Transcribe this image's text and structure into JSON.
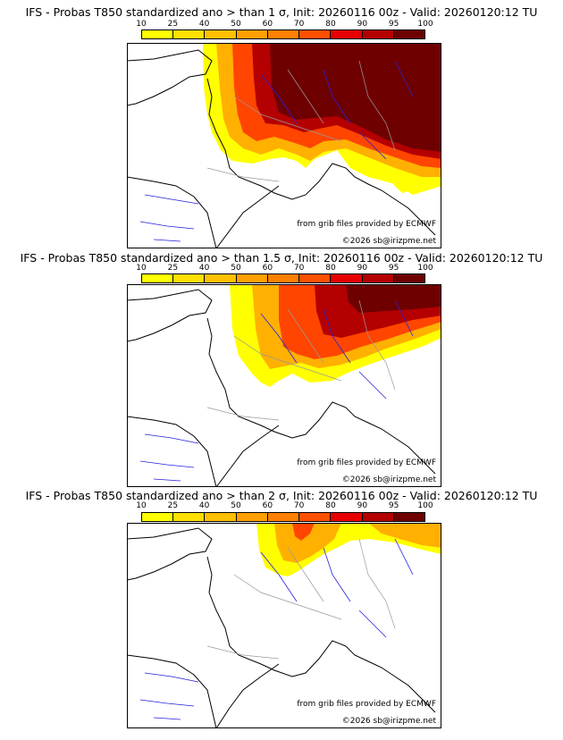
{
  "panels": [
    {
      "title": "IFS - Probas T850  standardized ano > than 1 σ, Init: 20260116 00z - Valid: 20260120:12 TU",
      "source_note": "from grib files provided by ECMWF",
      "copyright": "©2026 sb@irizpme.net"
    },
    {
      "title": "IFS - Probas T850  standardized ano > than 1.5 σ, Init: 20260116 00z - Valid: 20260120:12 TU",
      "source_note": "from grib files provided by ECMWF",
      "copyright": "©2026 sb@irizpme.net"
    },
    {
      "title": "IFS - Probas T850  standardized ano > than 2 σ, Init: 20260116 00z - Valid: 20260120:12 TU",
      "source_note": "from grib files provided by ECMWF",
      "copyright": "©2026 sb@irizpme.net"
    }
  ],
  "colorbar": {
    "ticks": [
      "10",
      "25",
      "40",
      "50",
      "60",
      "70",
      "80",
      "90",
      "95",
      "100"
    ],
    "colors": [
      "#ffff00",
      "#ffe000",
      "#ffc000",
      "#ffa000",
      "#ff8000",
      "#ff5000",
      "#e60000",
      "#b40000",
      "#6e0000"
    ]
  },
  "map_colors": {
    "coast": "#000000",
    "rivers": "#2222dd",
    "borders": "#9a9a9a",
    "frame": "#000000"
  }
}
